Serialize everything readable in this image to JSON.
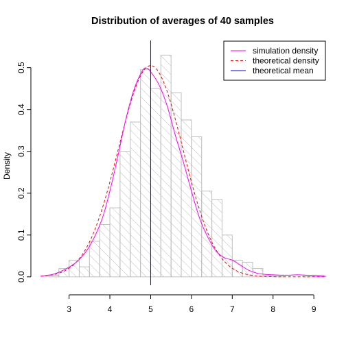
{
  "chart_data": {
    "type": "histogram",
    "title": "Distribution of averages of 40 samples",
    "xlabel": "",
    "ylabel": "Density",
    "xlim": [
      2.3,
      9.3
    ],
    "ylim": [
      -0.02,
      0.565
    ],
    "x_ticks": [
      "3",
      "4",
      "5",
      "6",
      "7",
      "8",
      "9"
    ],
    "y_ticks": [
      "0.0",
      "0.1",
      "0.2",
      "0.3",
      "0.4",
      "0.5"
    ],
    "bin_width": 0.25,
    "bins": [
      {
        "x0": 2.5,
        "density": 0.004
      },
      {
        "x0": 2.75,
        "density": 0.02
      },
      {
        "x0": 3.0,
        "density": 0.04
      },
      {
        "x0": 3.25,
        "density": 0.024
      },
      {
        "x0": 3.5,
        "density": 0.085
      },
      {
        "x0": 3.75,
        "density": 0.125
      },
      {
        "x0": 4.0,
        "density": 0.165
      },
      {
        "x0": 4.25,
        "density": 0.3
      },
      {
        "x0": 4.5,
        "density": 0.37
      },
      {
        "x0": 4.75,
        "density": 0.495
      },
      {
        "x0": 5.0,
        "density": 0.45
      },
      {
        "x0": 5.25,
        "density": 0.53
      },
      {
        "x0": 5.5,
        "density": 0.44
      },
      {
        "x0": 5.75,
        "density": 0.375
      },
      {
        "x0": 6.0,
        "density": 0.335
      },
      {
        "x0": 6.25,
        "density": 0.205
      },
      {
        "x0": 6.5,
        "density": 0.185
      },
      {
        "x0": 6.75,
        "density": 0.1
      },
      {
        "x0": 7.0,
        "density": 0.04
      },
      {
        "x0": 7.25,
        "density": 0.035
      },
      {
        "x0": 7.5,
        "density": 0.02
      },
      {
        "x0": 7.75,
        "density": 0.004
      },
      {
        "x0": 8.0,
        "density": 0.004
      },
      {
        "x0": 8.25,
        "density": 0.0
      },
      {
        "x0": 8.5,
        "density": 0.0
      },
      {
        "x0": 8.75,
        "density": 0.004
      },
      {
        "x0": 9.0,
        "density": 0.004
      }
    ],
    "series": [
      {
        "name": "simulation density",
        "color": "#ff00ff",
        "line_style": "solid",
        "x": [
          2.3,
          2.6,
          2.9,
          3.2,
          3.5,
          3.8,
          4.0,
          4.2,
          4.4,
          4.6,
          4.8,
          4.9,
          5.0,
          5.2,
          5.4,
          5.6,
          5.8,
          6.0,
          6.2,
          6.4,
          6.6,
          6.8,
          7.0,
          7.2,
          7.4,
          7.6,
          7.8,
          8.0,
          8.2,
          8.4,
          8.6,
          8.8,
          9.0,
          9.3
        ],
        "y": [
          0.002,
          0.006,
          0.018,
          0.037,
          0.073,
          0.136,
          0.205,
          0.29,
          0.38,
          0.45,
          0.493,
          0.499,
          0.49,
          0.46,
          0.41,
          0.34,
          0.275,
          0.205,
          0.14,
          0.095,
          0.062,
          0.046,
          0.04,
          0.028,
          0.016,
          0.009,
          0.006,
          0.005,
          0.004,
          0.004,
          0.005,
          0.004,
          0.003,
          0.001
        ]
      },
      {
        "name": "theoretical density",
        "color": "#ff0000",
        "line_style": "dashed",
        "distribution": {
          "kind": "normal",
          "mean": 5,
          "sd": 0.79
        }
      },
      {
        "name": "theoretical mean",
        "color": "#0000ff",
        "line_style": "solid",
        "vline_x": 5
      }
    ],
    "hist_color": "#bebebe",
    "hist_fill": "diagonal hatching",
    "legend_position": "top-right",
    "grid": false
  }
}
